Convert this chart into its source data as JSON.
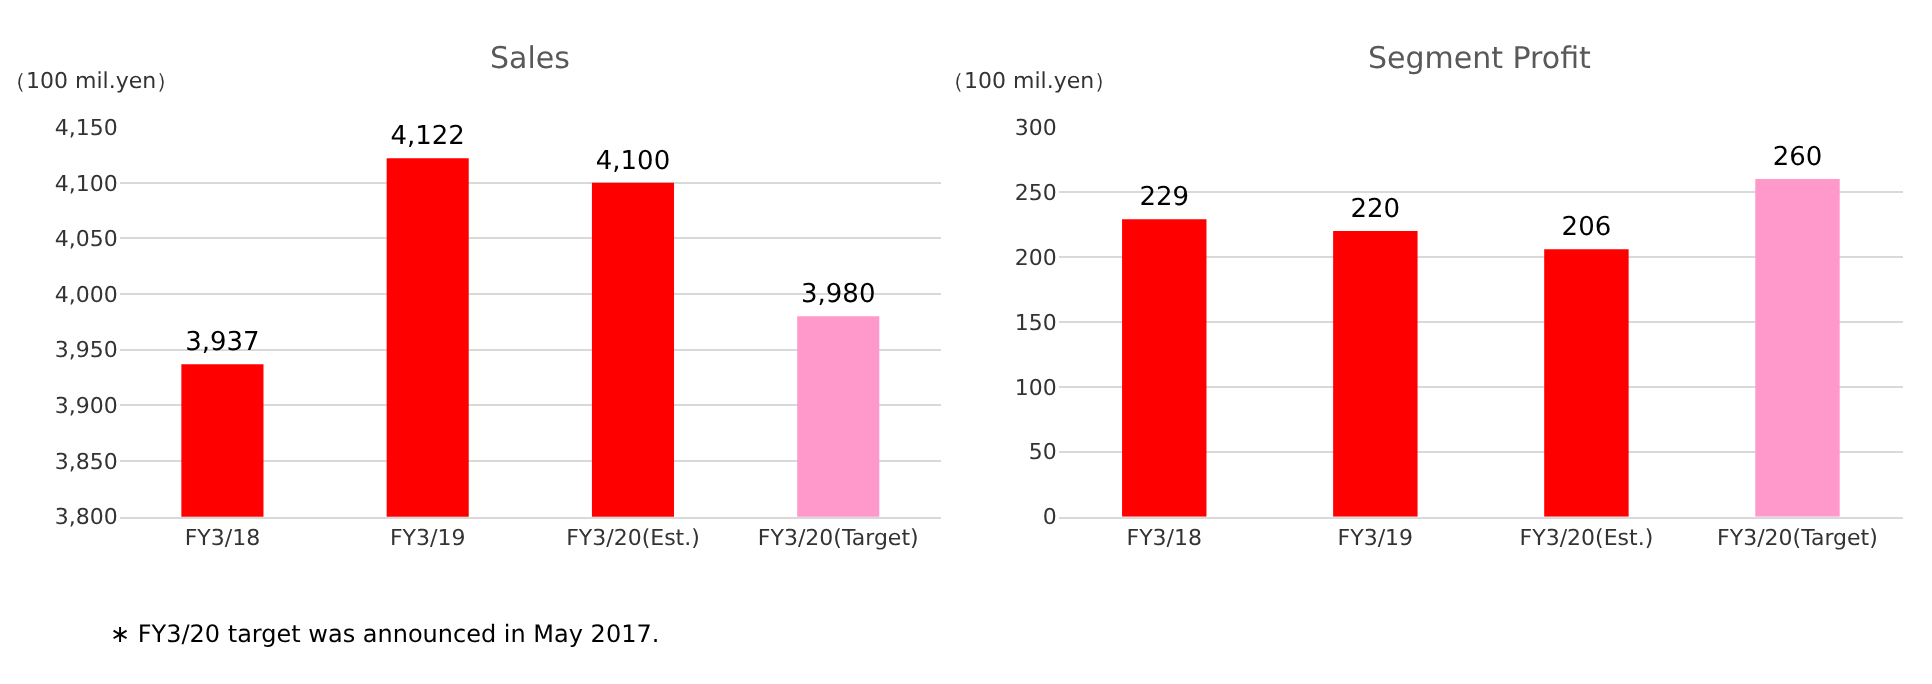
{
  "chart_data": [
    {
      "type": "bar",
      "title": "Sales",
      "ylabel": "（100 mil.yen）",
      "categories": [
        "FY3/18",
        "FY3/19",
        "FY3/20(Est.)",
        "FY3/20(Target)"
      ],
      "values": [
        3937,
        4122,
        4100,
        3980
      ],
      "colors": [
        "#ff0000",
        "#ff0000",
        "#ff0000",
        "#ff99cc"
      ],
      "value_labels": [
        "3,937",
        "4,122",
        "4,100",
        "3,980"
      ],
      "ylim": [
        3800,
        4150
      ],
      "yticks": [
        {
          "value": 3800,
          "label": "3,800"
        },
        {
          "value": 3850,
          "label": "3,850"
        },
        {
          "value": 3900,
          "label": "3,900"
        },
        {
          "value": 3950,
          "label": "3,950"
        },
        {
          "value": 4000,
          "label": "4,000"
        },
        {
          "value": 4050,
          "label": "4,050"
        },
        {
          "value": 4100,
          "label": "4,100"
        },
        {
          "value": 4150,
          "label": "4,150"
        }
      ],
      "grid": "y",
      "legend": false,
      "annotations": [
        "∗ FY3/20 target was announced in May 2017."
      ]
    },
    {
      "type": "bar",
      "title": "Segment Profit",
      "ylabel": "（100 mil.yen）",
      "categories": [
        "FY3/18",
        "FY3/19",
        "FY3/20(Est.)",
        "FY3/20(Target)"
      ],
      "values": [
        229,
        220,
        206,
        260
      ],
      "colors": [
        "#ff0000",
        "#ff0000",
        "#ff0000",
        "#ff99cc"
      ],
      "data_labels": true,
      "ylim": [
        0,
        300
      ],
      "yticks": [
        0,
        50,
        100,
        150,
        200,
        250,
        300
      ],
      "grid": "y",
      "legend": false
    }
  ]
}
